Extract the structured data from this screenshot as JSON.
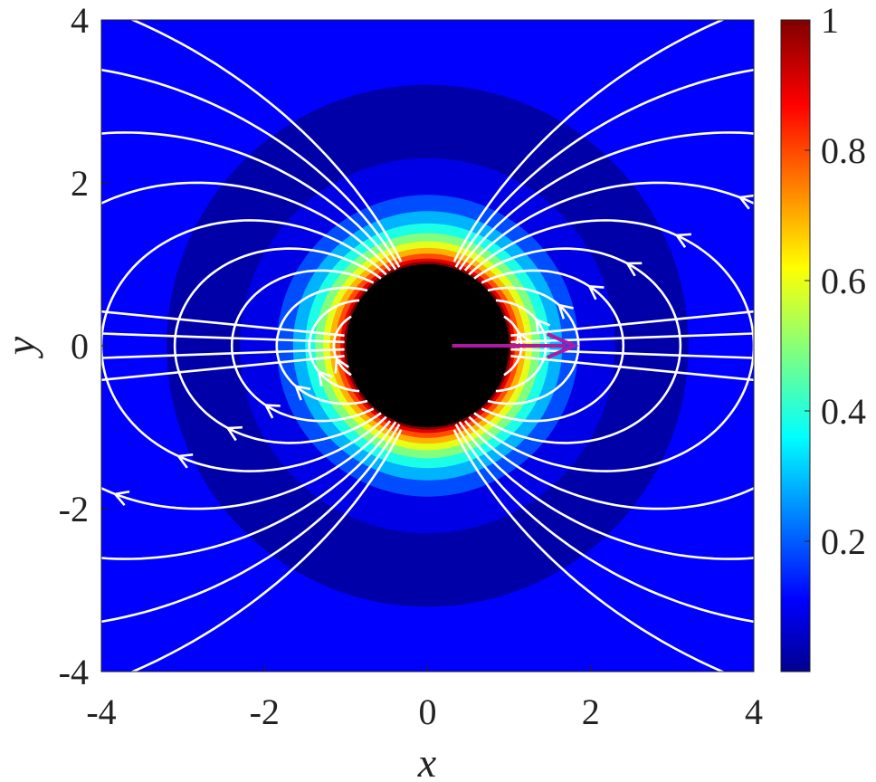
{
  "chart_data": {
    "type": "heatmap",
    "title": "",
    "xlabel": "x",
    "ylabel": "y",
    "xlim": [
      -4,
      4
    ],
    "ylim": [
      -4,
      4
    ],
    "xticks": [
      "-4",
      "-2",
      "0",
      "2",
      "4"
    ],
    "yticks": [
      "4",
      "2",
      "0",
      "-2",
      "-4"
    ],
    "colorbar": {
      "colormap": "jet",
      "range": [
        0,
        1
      ],
      "ticks": [
        "1",
        "0.8",
        "0.6",
        "0.4",
        "0.2"
      ]
    },
    "field_magnitude_levels": [
      {
        "radius": 3.2,
        "value": 0.04
      },
      {
        "radius": 2.3,
        "value": 0.1
      },
      {
        "radius": 1.85,
        "value": 0.2
      },
      {
        "radius": 1.65,
        "value": 0.3
      },
      {
        "radius": 1.5,
        "value": 0.4
      },
      {
        "radius": 1.38,
        "value": 0.5
      },
      {
        "radius": 1.28,
        "value": 0.6
      },
      {
        "radius": 1.2,
        "value": 0.7
      },
      {
        "radius": 1.13,
        "value": 0.8
      },
      {
        "radius": 1.07,
        "value": 0.9
      },
      {
        "radius": 1.03,
        "value": 1.0
      }
    ],
    "obstacle": {
      "center": [
        0,
        0
      ],
      "radius": 1.0,
      "color": "#000000"
    },
    "dipole_arrow": {
      "from": [
        0.3,
        0
      ],
      "to": [
        1.8,
        0
      ],
      "color": "#b01aa0"
    },
    "streamlines": {
      "pattern": "dipole field lines",
      "color": "#ffffff",
      "line_constants": [
        0.42,
        0.55,
        0.7,
        0.9,
        1.15,
        1.45,
        1.85,
        2.4,
        3.1,
        4.0,
        5.2,
        6.8,
        9.0,
        12.0
      ]
    },
    "grid": false
  }
}
